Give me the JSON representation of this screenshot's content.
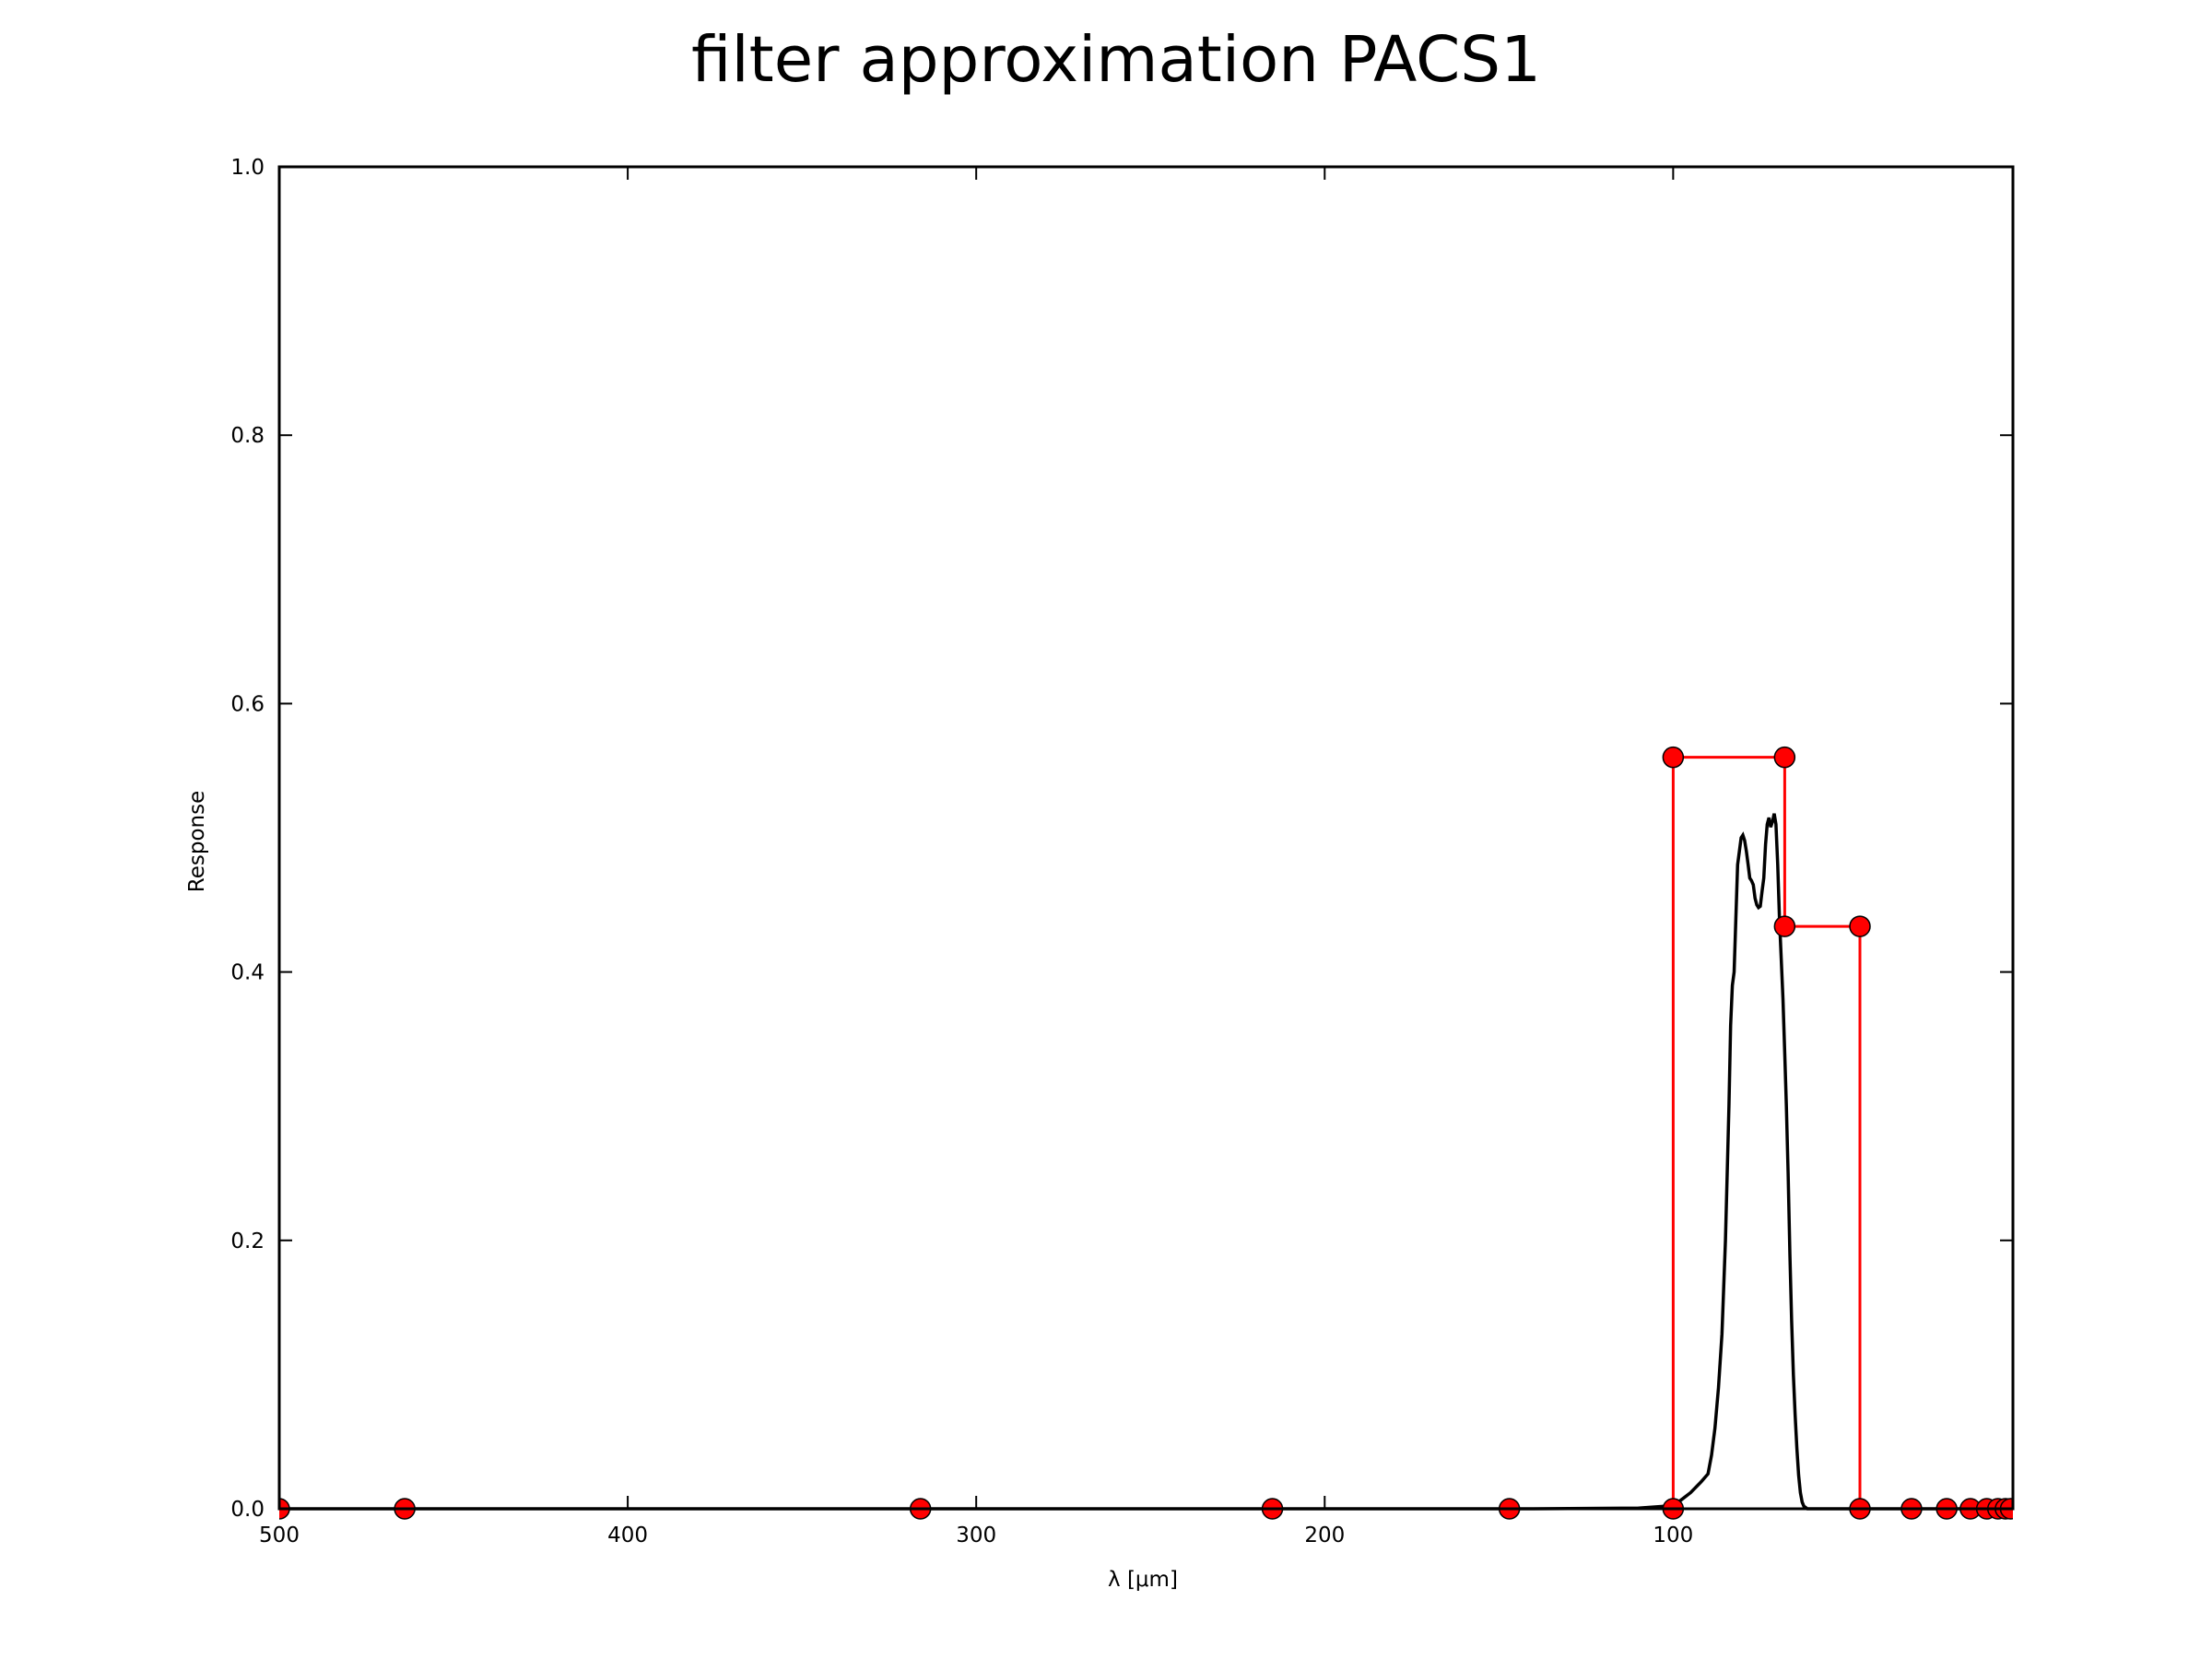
{
  "chart_data": {
    "type": "line",
    "title": "filter approximation PACS1",
    "xlabel": "λ [μm]",
    "ylabel": "Response",
    "xlim": [
      500,
      2.5
    ],
    "ylim": [
      0,
      1.0
    ],
    "x_axis_reversed": true,
    "xticks": [
      500,
      400,
      300,
      200,
      100
    ],
    "xtick_labels": [
      "500",
      "400",
      "300",
      "200",
      "100"
    ],
    "yticks": [
      0.0,
      0.2,
      0.4,
      0.6,
      0.8,
      1.0
    ],
    "ytick_labels": [
      "0.0",
      "0.2",
      "0.4",
      "0.6",
      "0.8",
      "1.0"
    ],
    "grid": false,
    "series": [
      {
        "role": "filter-response",
        "style": "line",
        "color": "#000000",
        "x": [
          500,
          140,
          110,
          102,
          98,
          95,
          92,
          90,
          89,
          88,
          87,
          86,
          85,
          84,
          83.5,
          83,
          82.5,
          82,
          81.5,
          81,
          80.5,
          80,
          79.5,
          79,
          78.5,
          78,
          77.5,
          77,
          76.5,
          76,
          75.5,
          75,
          74.5,
          74,
          73.5,
          73,
          72.5,
          72,
          71.5,
          71,
          70.5,
          70,
          69.5,
          69,
          68.5,
          68,
          67.5,
          67,
          66.5,
          66,
          65.5,
          65,
          64.5,
          64,
          63.5,
          63,
          62.5,
          62,
          61.5,
          61,
          60.5,
          60,
          59.5,
          59,
          58.5,
          58,
          57.5,
          57,
          56.5,
          56,
          55.5,
          55,
          50,
          2.5
        ],
        "y": [
          0,
          0,
          0.0005,
          0.002,
          0.006,
          0.012,
          0.02,
          0.026,
          0.04,
          0.06,
          0.09,
          0.13,
          0.2,
          0.3,
          0.36,
          0.39,
          0.4,
          0.44,
          0.48,
          0.49,
          0.5,
          0.502,
          0.498,
          0.49,
          0.48,
          0.47,
          0.468,
          0.465,
          0.455,
          0.45,
          0.448,
          0.449,
          0.46,
          0.47,
          0.495,
          0.51,
          0.515,
          0.508,
          0.512,
          0.518,
          0.51,
          0.48,
          0.44,
          0.41,
          0.38,
          0.34,
          0.3,
          0.25,
          0.19,
          0.14,
          0.1,
          0.07,
          0.045,
          0.025,
          0.012,
          0.005,
          0.002,
          0.001,
          0,
          0,
          0,
          0,
          0,
          0,
          0,
          0,
          0,
          0,
          0,
          0,
          0,
          0,
          0,
          0
        ]
      },
      {
        "role": "step-approximation",
        "style": "step",
        "color": "#ff0000",
        "x": [
          500,
          464,
          316,
          215,
          147,
          100,
          100,
          68,
          68,
          46.4,
          46.4,
          31.6,
          21.5,
          14.7,
          10,
          6.8,
          4.64,
          3.16,
          2.15
        ],
        "y": [
          0,
          0,
          0,
          0,
          0,
          0,
          0.56,
          0.56,
          0.434,
          0.434,
          0,
          0,
          0,
          0,
          0,
          0,
          0,
          0,
          0
        ]
      },
      {
        "role": "step-markers",
        "style": "markers",
        "marker": "circle",
        "color": "#ff0000",
        "edgecolor": "#000000",
        "x": [
          500,
          464,
          316,
          215,
          147,
          100,
          100,
          68,
          68,
          46.4,
          46.4,
          31.6,
          21.5,
          14.7,
          10,
          6.8,
          4.64,
          3.16,
          2.15
        ],
        "y": [
          0,
          0,
          0,
          0,
          0,
          0,
          0.56,
          0.56,
          0.434,
          0.434,
          0,
          0,
          0,
          0,
          0,
          0,
          0,
          0,
          0
        ]
      }
    ]
  }
}
